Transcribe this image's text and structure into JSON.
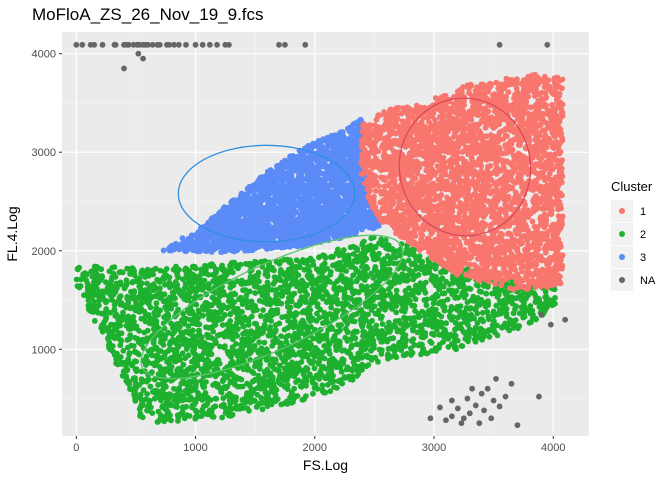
{
  "chart_data": {
    "type": "scatter",
    "title": "MoFloA_ZS_26_Nov_19_9.fcs",
    "xlabel": "FS.Log",
    "ylabel": "FL.4.Log",
    "xlim": [
      -120,
      4300
    ],
    "ylim": [
      120,
      4220
    ],
    "x_ticks": [
      0,
      1000,
      2000,
      3000,
      4000
    ],
    "y_ticks": [
      1000,
      2000,
      3000,
      4000
    ],
    "grid": true,
    "legend": {
      "title": "Cluster",
      "position": "right",
      "entries": [
        {
          "label": "1",
          "color": "#F8766D"
        },
        {
          "label": "2",
          "color": "#1EB12F"
        },
        {
          "label": "3",
          "color": "#5B8BF7"
        },
        {
          "label": "NA",
          "color": "#666666"
        }
      ]
    },
    "series": [
      {
        "name": "1",
        "color": "#F8766D",
        "region": [
          [
            2400,
            3300
          ],
          [
            2650,
            3450
          ],
          [
            2900,
            3500
          ],
          [
            3300,
            3700
          ],
          [
            3600,
            3750
          ],
          [
            3900,
            3800
          ],
          [
            4080,
            3750
          ],
          [
            4080,
            1650
          ],
          [
            3700,
            1600
          ],
          [
            3200,
            1750
          ],
          [
            2950,
            1950
          ],
          [
            2700,
            2150
          ],
          [
            2550,
            2300
          ],
          [
            2450,
            2500
          ],
          [
            2380,
            2800
          ],
          [
            2390,
            3050
          ]
        ],
        "ellipse": {
          "cx": 3260,
          "cy": 2850,
          "rx": 550,
          "ry": 700,
          "angle_deg": 10
        }
      },
      {
        "name": "2",
        "color": "#1EB12F",
        "region": [
          [
            0,
            1850
          ],
          [
            600,
            1820
          ],
          [
            1300,
            1880
          ],
          [
            2000,
            1930
          ],
          [
            2500,
            2150
          ],
          [
            2800,
            2050
          ],
          [
            3100,
            1850
          ],
          [
            3400,
            1800
          ],
          [
            3700,
            1700
          ],
          [
            4000,
            1650
          ],
          [
            4060,
            1450
          ],
          [
            3800,
            1250
          ],
          [
            3200,
            1000
          ],
          [
            2600,
            900
          ],
          [
            2200,
            600
          ],
          [
            1800,
            450
          ],
          [
            1200,
            300
          ],
          [
            700,
            250
          ],
          [
            500,
            320
          ],
          [
            400,
            700
          ],
          [
            0,
            1650
          ]
        ],
        "ellipse": {
          "cx": 1640,
          "cy": 1430,
          "rx": 1200,
          "ry": 430,
          "angle_deg": 25
        }
      },
      {
        "name": "3",
        "color": "#5B8BF7",
        "region": [
          [
            700,
            2000
          ],
          [
            1000,
            2200
          ],
          [
            1300,
            2500
          ],
          [
            1600,
            2800
          ],
          [
            1900,
            3050
          ],
          [
            2200,
            3200
          ],
          [
            2400,
            3350
          ],
          [
            2400,
            3050
          ],
          [
            2450,
            2500
          ],
          [
            2550,
            2250
          ],
          [
            2300,
            2150
          ],
          [
            1900,
            2050
          ],
          [
            1500,
            2000
          ],
          [
            1100,
            1980
          ]
        ],
        "ellipse": {
          "cx": 1595,
          "cy": 2580,
          "rx": 740,
          "ry": 490,
          "angle_deg": 0
        }
      },
      {
        "name": "NA",
        "color": "#666666",
        "points": [
          [
            0,
            4090
          ],
          [
            50,
            4090
          ],
          [
            120,
            4090
          ],
          [
            150,
            4090
          ],
          [
            220,
            4090
          ],
          [
            320,
            4090
          ],
          [
            330,
            4090
          ],
          [
            400,
            4090
          ],
          [
            420,
            4090
          ],
          [
            440,
            4090
          ],
          [
            480,
            4090
          ],
          [
            510,
            4090
          ],
          [
            530,
            4090
          ],
          [
            560,
            4090
          ],
          [
            580,
            4090
          ],
          [
            600,
            4090
          ],
          [
            640,
            4090
          ],
          [
            680,
            4090
          ],
          [
            700,
            4090
          ],
          [
            760,
            4090
          ],
          [
            780,
            4090
          ],
          [
            820,
            4090
          ],
          [
            860,
            4090
          ],
          [
            920,
            4090
          ],
          [
            1000,
            4090
          ],
          [
            1060,
            4090
          ],
          [
            1120,
            4090
          ],
          [
            1180,
            4090
          ],
          [
            1250,
            4090
          ],
          [
            1280,
            4090
          ],
          [
            1700,
            4090
          ],
          [
            1750,
            4090
          ],
          [
            1920,
            4090
          ],
          [
            520,
            4000
          ],
          [
            560,
            3950
          ],
          [
            400,
            3850
          ],
          [
            3550,
            4090
          ],
          [
            3950,
            4090
          ],
          [
            3980,
            1250
          ],
          [
            4100,
            1300
          ],
          [
            3900,
            1350
          ],
          [
            3230,
            250
          ],
          [
            3150,
            320
          ],
          [
            3700,
            230
          ],
          [
            3650,
            650
          ],
          [
            3880,
            520
          ],
          [
            2970,
            300
          ],
          [
            3280,
            500
          ],
          [
            3350,
            430
          ],
          [
            3400,
            550
          ],
          [
            3450,
            600
          ],
          [
            3500,
            480
          ],
          [
            3520,
            700
          ],
          [
            3300,
            350
          ],
          [
            3200,
            400
          ],
          [
            3100,
            280
          ],
          [
            3420,
            380
          ],
          [
            3480,
            300
          ],
          [
            3550,
            420
          ],
          [
            3600,
            520
          ],
          [
            3380,
            250
          ],
          [
            3250,
            300
          ],
          [
            3150,
            480
          ],
          [
            3050,
            410
          ],
          [
            3320,
            600
          ]
        ]
      }
    ]
  }
}
